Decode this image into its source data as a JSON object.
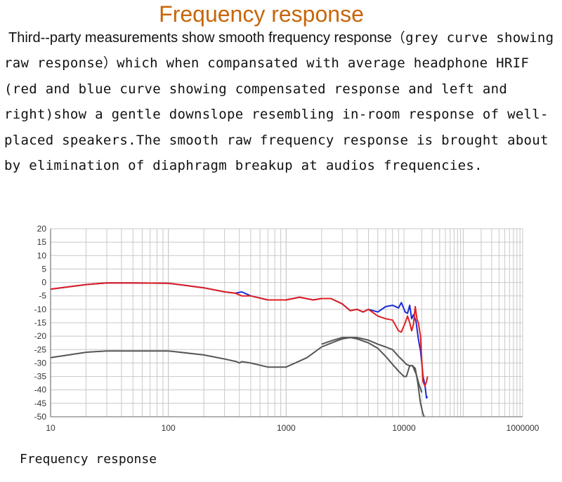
{
  "title": "Frequency response",
  "paragraph": {
    "lead": "Third--party measurements show smooth frequency response",
    "body": "（grey curve showing raw response）which when compansated with average headphone HRIF (red and blue curve showing compensated response and left and right)show a gentle downslope resembling in-room response of well-placed speakers.The smooth raw frequency response is brought about by elimination of diaphragm breakup at audios frequencies."
  },
  "caption": "Frequency response",
  "colors": {
    "title": "#c8660a",
    "red": "#e02020",
    "blue": "#1a2ad8",
    "grey": "#555555",
    "grid": "#c8c8c8"
  },
  "chart_data": {
    "type": "line",
    "xscale": "log",
    "xlim": [
      10,
      1000000
    ],
    "ylim": [
      -50,
      20
    ],
    "grid": true,
    "xticks": [
      "10",
      "100",
      "1000",
      "10000",
      "1000000"
    ],
    "yticks": [
      "20",
      "15",
      "10",
      "5",
      "0",
      "-5",
      "-10",
      "-15",
      "-20",
      "-25",
      "-30",
      "-35",
      "-40",
      "-45",
      "-50"
    ],
    "series": [
      {
        "color": "#1a2ad8",
        "x": [
          10,
          20,
          30,
          50,
          100,
          200,
          300,
          370,
          420,
          500,
          700,
          1000,
          1300,
          1700,
          2000,
          2400,
          3000,
          3500,
          4000,
          4500,
          5000,
          6000,
          7000,
          8000,
          9000,
          9500,
          10500,
          11500,
          12500,
          13500,
          14500,
          16000,
          17500,
          19000,
          20000,
          21000,
          22500,
          24000,
          25000
        ],
        "y": [
          -2.5,
          -0.8,
          -0.2,
          -0.2,
          -0.3,
          -2.0,
          -3.5,
          -4.0,
          -3.5,
          -5.0,
          -6.5,
          -6.5,
          -5.5,
          -6.5,
          -6.0,
          -6.0,
          -8.0,
          -10.5,
          -10.0,
          -11.0,
          -10.0,
          -11.0,
          -9.0,
          -8.5,
          -9.5,
          -7.5,
          -11.0,
          -11.5,
          -8.5,
          -13.5,
          -12.0,
          -14.5,
          -21.0,
          -25.5,
          -30.0,
          -35.0,
          -38.0,
          -43.0,
          -42.5
        ]
      },
      {
        "color": "#e02020",
        "x": [
          10,
          20,
          30,
          50,
          100,
          200,
          300,
          370,
          420,
          500,
          700,
          1000,
          1300,
          1700,
          2000,
          2400,
          3000,
          3500,
          4000,
          4500,
          5000,
          6000,
          7000,
          8000,
          9000,
          9500,
          10500,
          11500,
          12500,
          13500,
          14500,
          15500,
          16500,
          17500,
          19000,
          20000,
          21000,
          22500,
          24000,
          25000
        ],
        "y": [
          -2.5,
          -0.8,
          -0.2,
          -0.2,
          -0.3,
          -2.0,
          -3.5,
          -4.0,
          -5.0,
          -5.0,
          -6.5,
          -6.5,
          -5.5,
          -6.5,
          -6.0,
          -6.0,
          -8.0,
          -10.5,
          -10.0,
          -11.0,
          -10.0,
          -12.5,
          -13.5,
          -14.0,
          -18.0,
          -18.5,
          -15.0,
          -12.5,
          -15.0,
          -18.0,
          -15.5,
          -9.0,
          -13.5,
          -15.0,
          -20.0,
          -29.0,
          -37.0,
          -38.5,
          -37.0,
          -35.0
        ]
      },
      {
        "color": "#555555",
        "x": [
          10,
          20,
          30,
          50,
          100,
          200,
          300,
          380,
          400,
          420,
          500,
          700,
          1000,
          1500,
          2000,
          2600,
          3000,
          3500,
          4000,
          4500,
          5000,
          6000,
          7000,
          8000,
          9000,
          10000,
          11000,
          12500,
          14000,
          15500,
          17000,
          19000,
          21000,
          22000
        ],
        "y": [
          -28.0,
          -26.0,
          -25.5,
          -25.5,
          -25.5,
          -27.0,
          -28.5,
          -29.5,
          -30.0,
          -29.5,
          -30.0,
          -31.5,
          -31.5,
          -28.0,
          -24.0,
          -22.0,
          -21.0,
          -20.5,
          -20.5,
          -21.0,
          -21.5,
          -23.0,
          -24.0,
          -25.0,
          -27.5,
          -29.5,
          -30.5,
          -31.0,
          -31.0,
          -32.0,
          -37.0,
          -45.0,
          -49.0,
          -50.0
        ]
      },
      {
        "color": "#555555",
        "x": [
          2000,
          2500,
          3000,
          3500,
          4000,
          5000,
          6000,
          7000,
          8000,
          9000,
          10000,
          11000,
          12500,
          14000,
          16000,
          18000,
          20000
        ],
        "y": [
          -23.0,
          -21.5,
          -20.5,
          -20.5,
          -21.0,
          -22.5,
          -24.5,
          -27.5,
          -30.5,
          -33.0,
          -35.0,
          -35.0,
          -31.0,
          -31.0,
          -34.0,
          -38.0,
          -41.0
        ]
      }
    ]
  }
}
